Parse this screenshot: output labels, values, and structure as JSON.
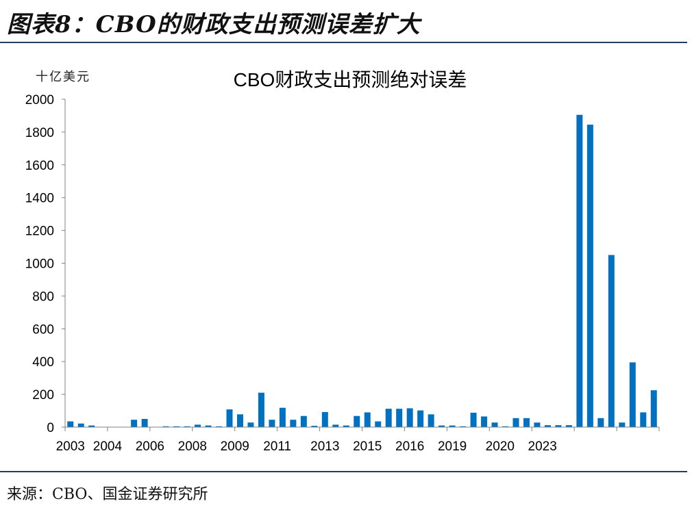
{
  "figure": {
    "title": "图表8：CBO的财政支出预测误差扩大",
    "source": "来源：CBO、国金证券研究所"
  },
  "chart_data": {
    "type": "bar",
    "title": "CBO财政支出预测绝对误差",
    "unit_label": "十亿美元",
    "xlabel": "",
    "ylabel": "十亿美元",
    "ylim": [
      0,
      2000
    ],
    "ytick_values": [
      0,
      200,
      400,
      600,
      800,
      1000,
      1200,
      1400,
      1600,
      1800,
      2000
    ],
    "grid": false,
    "legend": "none",
    "bar_color": "#0070C0",
    "x_tick_labels": [
      {
        "label": "2003",
        "index": 0
      },
      {
        "label": "2004",
        "index": 3.5
      },
      {
        "label": "2006",
        "index": 7.5
      },
      {
        "label": "2008",
        "index": 11.5
      },
      {
        "label": "2009",
        "index": 15.5
      },
      {
        "label": "2011",
        "index": 19.5
      },
      {
        "label": "2013",
        "index": 24
      },
      {
        "label": "2015",
        "index": 28
      },
      {
        "label": "2016",
        "index": 32
      },
      {
        "label": "2019",
        "index": 36
      },
      {
        "label": "2020",
        "index": 40.5
      },
      {
        "label": "2023",
        "index": 44.5
      }
    ],
    "values": [
      35,
      22,
      10,
      0,
      0,
      0,
      45,
      50,
      0,
      5,
      5,
      5,
      15,
      10,
      5,
      108,
      78,
      28,
      210,
      45,
      118,
      45,
      68,
      8,
      92,
      15,
      10,
      68,
      90,
      35,
      112,
      112,
      115,
      102,
      78,
      10,
      10,
      5,
      88,
      65,
      28,
      5,
      55,
      55,
      28,
      12,
      12,
      12,
      1905,
      1845,
      55,
      1050,
      28,
      395,
      90,
      225
    ]
  }
}
